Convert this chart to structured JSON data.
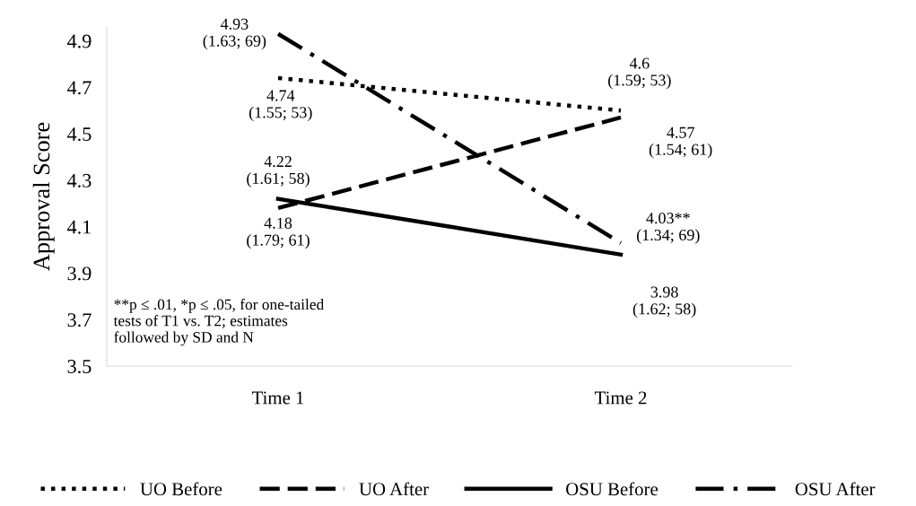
{
  "chart_data": {
    "type": "line",
    "ylabel": "Approval Score",
    "categories": [
      "Time 1",
      "Time 2"
    ],
    "series": [
      {
        "name": "UO Before",
        "color": "#000000",
        "line_style": "dotted",
        "values": [
          4.74,
          4.6
        ],
        "value_labels": [
          "4.74\n(1.55; 53)",
          "4.6\n(1.59; 53)"
        ]
      },
      {
        "name": "UO After",
        "color": "#000000",
        "line_style": "dashed",
        "values": [
          4.18,
          4.57
        ],
        "value_labels": [
          "4.18\n(1.79; 61)",
          "4.57\n(1.54; 61)"
        ]
      },
      {
        "name": "OSU Before",
        "color": "#000000",
        "line_style": "solid",
        "values": [
          4.22,
          3.98
        ],
        "value_labels": [
          "4.22\n(1.61; 58)",
          "3.98\n(1.62; 58)"
        ]
      },
      {
        "name": "OSU After",
        "color": "#000000",
        "line_style": "dashdot",
        "values": [
          4.93,
          4.03
        ],
        "value_labels": [
          "4.93\n(1.63; 69)",
          "4.03**\n(1.34; 69)"
        ]
      }
    ],
    "ylim": [
      3.5,
      4.96
    ],
    "yticks": [
      3.5,
      3.7,
      3.9,
      4.1,
      4.3,
      4.5,
      4.7,
      4.9
    ],
    "grid": false,
    "legend": "bottom",
    "marker": "none",
    "annotations": [
      "**p ≤ .01, *p ≤ .05, for one-tailed\ntests of T1 vs. T2; estimates\nfollowed by SD and N"
    ]
  }
}
